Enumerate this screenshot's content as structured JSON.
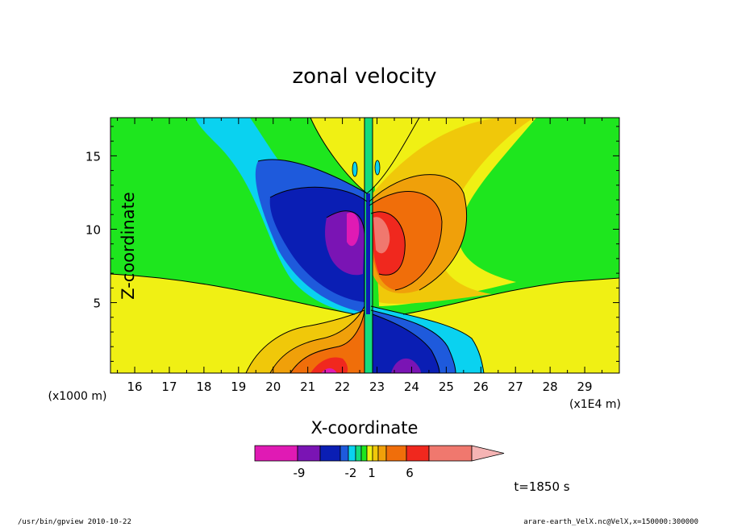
{
  "chart_data": {
    "type": "heatmap",
    "title": "zonal velocity",
    "xlabel": "X-coordinate",
    "ylabel": "Z-coordinate",
    "x_unit": "(x1E4 m)",
    "y_unit": "(x1000 m)",
    "xlim": [
      15.3,
      30.0
    ],
    "ylim": [
      0.2,
      17.6
    ],
    "x_ticks": [
      "16",
      "17",
      "18",
      "19",
      "20",
      "21",
      "22",
      "23",
      "24",
      "25",
      "26",
      "27",
      "28",
      "29"
    ],
    "y_ticks": [
      "5",
      "10",
      "15"
    ],
    "x_tick_values": [
      16,
      17,
      18,
      19,
      20,
      21,
      22,
      23,
      24,
      25,
      26,
      27,
      28,
      29
    ],
    "y_tick_values": [
      5,
      10,
      15
    ],
    "colorbar": {
      "colors": [
        "#e01ab4",
        "#7a14b4",
        "#0a1eb4",
        "#1e5adc",
        "#0ad2f0",
        "#14dc7d",
        "#1ee61e",
        "#f0f014",
        "#f0c80a",
        "#f0a00a",
        "#f06e0a",
        "#f0281e",
        "#f0786e",
        "#f5b4b4"
      ],
      "tick_labels": [
        "-9",
        "-2",
        "1",
        "6"
      ],
      "extend": "right"
    },
    "time_label": "t=1850 s"
  },
  "footer": {
    "left": "/usr/bin/gpview   2010-10-22",
    "right": "arare-earth_VelX.nc@VelX,x=150000:300000"
  }
}
